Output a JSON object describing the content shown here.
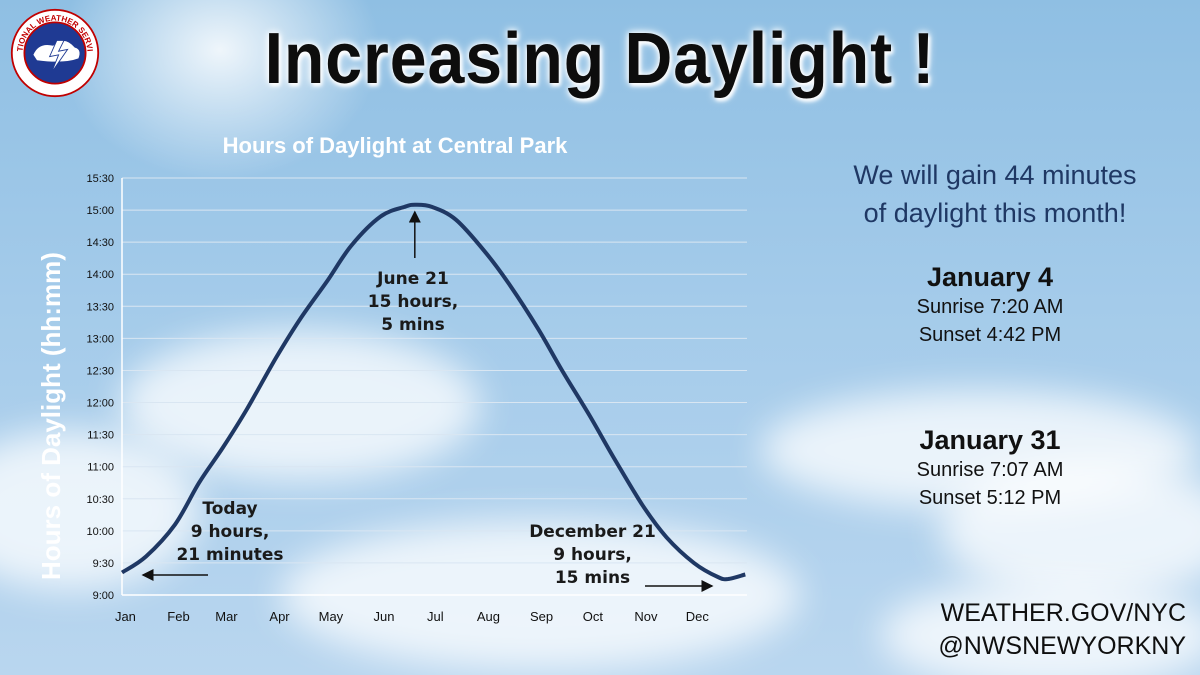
{
  "header": {
    "title": "Increasing Daylight !",
    "logo_text": "NATIONAL WEATHER SERVICE"
  },
  "chart_data": {
    "type": "line",
    "title": "Hours of Daylight at Central Park",
    "xlabel": "",
    "ylabel": "Hours of Daylight (hh:mm)",
    "categories": [
      "Jan",
      "Feb",
      "Mar",
      "Apr",
      "May",
      "Jun",
      "Jul",
      "Aug",
      "Sep",
      "Oct",
      "Nov",
      "Dec"
    ],
    "yticks": [
      "9:00",
      "9:30",
      "10:00",
      "10:30",
      "11:00",
      "11:30",
      "12:00",
      "12:30",
      "13:00",
      "13:30",
      "14:00",
      "14:30",
      "15:00",
      "15:30"
    ],
    "ylim_hours": [
      9,
      15.5
    ],
    "grid": true,
    "series": [
      {
        "name": "",
        "day_of_year": [
          1,
          15,
          32,
          46,
          60,
          74,
          91,
          105,
          121,
          135,
          152,
          166,
          172,
          182,
          196,
          213,
          227,
          244,
          258,
          274,
          288,
          305,
          319,
          335,
          349,
          355,
          365
        ],
        "hours": [
          9.35,
          9.6,
          10.1,
          10.75,
          11.3,
          11.9,
          12.7,
          13.3,
          13.9,
          14.45,
          14.9,
          15.05,
          15.083,
          15.05,
          14.85,
          14.35,
          13.85,
          13.15,
          12.5,
          11.8,
          11.15,
          10.4,
          9.9,
          9.5,
          9.28,
          9.25,
          9.32
        ]
      }
    ],
    "annotations": {
      "today": [
        "Today",
        "9 hours,",
        "21 minutes"
      ],
      "june": [
        "June 21",
        "15 hours,",
        "5 mins"
      ],
      "december": [
        "December 21",
        "9 hours,",
        "15 mins"
      ]
    },
    "colors": {
      "line": "#1f3864",
      "grid": "#d9e6f2",
      "axis": "#ffffff"
    }
  },
  "info": {
    "gain_line1": "We will gain 44 minutes",
    "gain_line2": "of daylight this month!",
    "jan4": {
      "heading": "January 4",
      "sunrise": "Sunrise 7:20 AM",
      "sunset": "Sunset 4:42 PM"
    },
    "jan31": {
      "heading": "January 31",
      "sunrise": "Sunrise 7:07 AM",
      "sunset": "Sunset 5:12 PM"
    }
  },
  "footer": {
    "website": "WEATHER.GOV/NYC",
    "handle": "@NWSNEWYORKNY"
  }
}
